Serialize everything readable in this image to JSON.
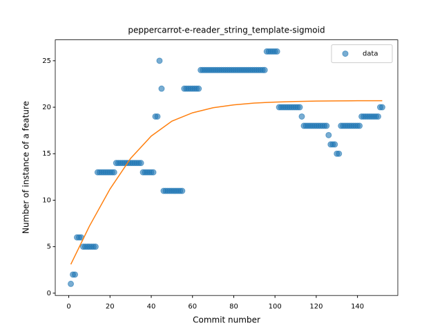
{
  "chart_data": {
    "type": "scatter",
    "title": "peppercarrot-e-reader_string_template-sigmoid",
    "xlabel": "Commit number",
    "ylabel": "Number of instance of a feature",
    "xlim": [
      -6.55,
      159.55
    ],
    "ylim": [
      -0.25,
      27.25
    ],
    "xticks": [
      0,
      20,
      40,
      60,
      80,
      100,
      120,
      140
    ],
    "yticks": [
      0,
      5,
      10,
      15,
      20,
      25
    ],
    "legend": "upper right",
    "series": [
      {
        "name": "data",
        "type": "scatter",
        "color": "#1f77b4",
        "x": [
          1,
          2,
          3,
          4,
          5,
          6,
          7,
          8,
          9,
          10,
          11,
          12,
          13,
          14,
          15,
          16,
          17,
          18,
          19,
          20,
          21,
          22,
          23,
          24,
          25,
          26,
          27,
          28,
          29,
          30,
          31,
          32,
          33,
          34,
          35,
          36,
          37,
          38,
          39,
          40,
          41,
          42,
          43,
          44,
          45,
          46,
          47,
          48,
          49,
          50,
          51,
          52,
          53,
          54,
          55,
          56,
          57,
          58,
          59,
          60,
          61,
          62,
          63,
          64,
          65,
          66,
          67,
          68,
          69,
          70,
          71,
          72,
          73,
          74,
          75,
          76,
          77,
          78,
          79,
          80,
          81,
          82,
          83,
          84,
          85,
          86,
          87,
          88,
          89,
          90,
          91,
          92,
          93,
          94,
          95,
          96,
          97,
          98,
          99,
          100,
          101,
          102,
          103,
          104,
          105,
          106,
          107,
          108,
          109,
          110,
          111,
          112,
          113,
          114,
          115,
          116,
          117,
          118,
          119,
          120,
          121,
          122,
          123,
          124,
          125,
          126,
          127,
          128,
          129,
          130,
          131,
          132,
          133,
          134,
          135,
          136,
          137,
          138,
          139,
          140,
          141,
          142,
          143,
          144,
          145,
          146,
          147,
          148,
          149,
          150,
          151,
          152
        ],
        "values": [
          1,
          2,
          2,
          6,
          6,
          6,
          5,
          5,
          5,
          5,
          5,
          5,
          5,
          13,
          13,
          13,
          13,
          13,
          13,
          13,
          13,
          13,
          14,
          14,
          14,
          14,
          14,
          14,
          14,
          14,
          14,
          14,
          14,
          14,
          14,
          13,
          13,
          13,
          13,
          13,
          13,
          19,
          19,
          25,
          22,
          11,
          11,
          11,
          11,
          11,
          11,
          11,
          11,
          11,
          11,
          22,
          22,
          22,
          22,
          22,
          22,
          22,
          22,
          24,
          24,
          24,
          24,
          24,
          24,
          24,
          24,
          24,
          24,
          24,
          24,
          24,
          24,
          24,
          24,
          24,
          24,
          24,
          24,
          24,
          24,
          24,
          24,
          24,
          24,
          24,
          24,
          24,
          24,
          24,
          24,
          26,
          26,
          26,
          26,
          26,
          26,
          20,
          20,
          20,
          20,
          20,
          20,
          20,
          20,
          20,
          20,
          20,
          19,
          18,
          18,
          18,
          18,
          18,
          18,
          18,
          18,
          18,
          18,
          18,
          18,
          17,
          16,
          16,
          16,
          15,
          15,
          18,
          18,
          18,
          18,
          18,
          18,
          18,
          18,
          18,
          18,
          19,
          19,
          19,
          19,
          19,
          19,
          19,
          19,
          19,
          20,
          20
        ]
      },
      {
        "type": "line",
        "color": "#ff7f0e",
        "x": [
          1,
          10,
          20,
          30,
          40,
          50,
          60,
          70,
          80,
          90,
          100,
          110,
          120,
          130,
          140,
          152
        ],
        "values": [
          3.1,
          7.2,
          11.2,
          14.5,
          16.9,
          18.5,
          19.4,
          19.95,
          20.25,
          20.45,
          20.55,
          20.62,
          20.66,
          20.68,
          20.7,
          20.7
        ]
      }
    ]
  }
}
